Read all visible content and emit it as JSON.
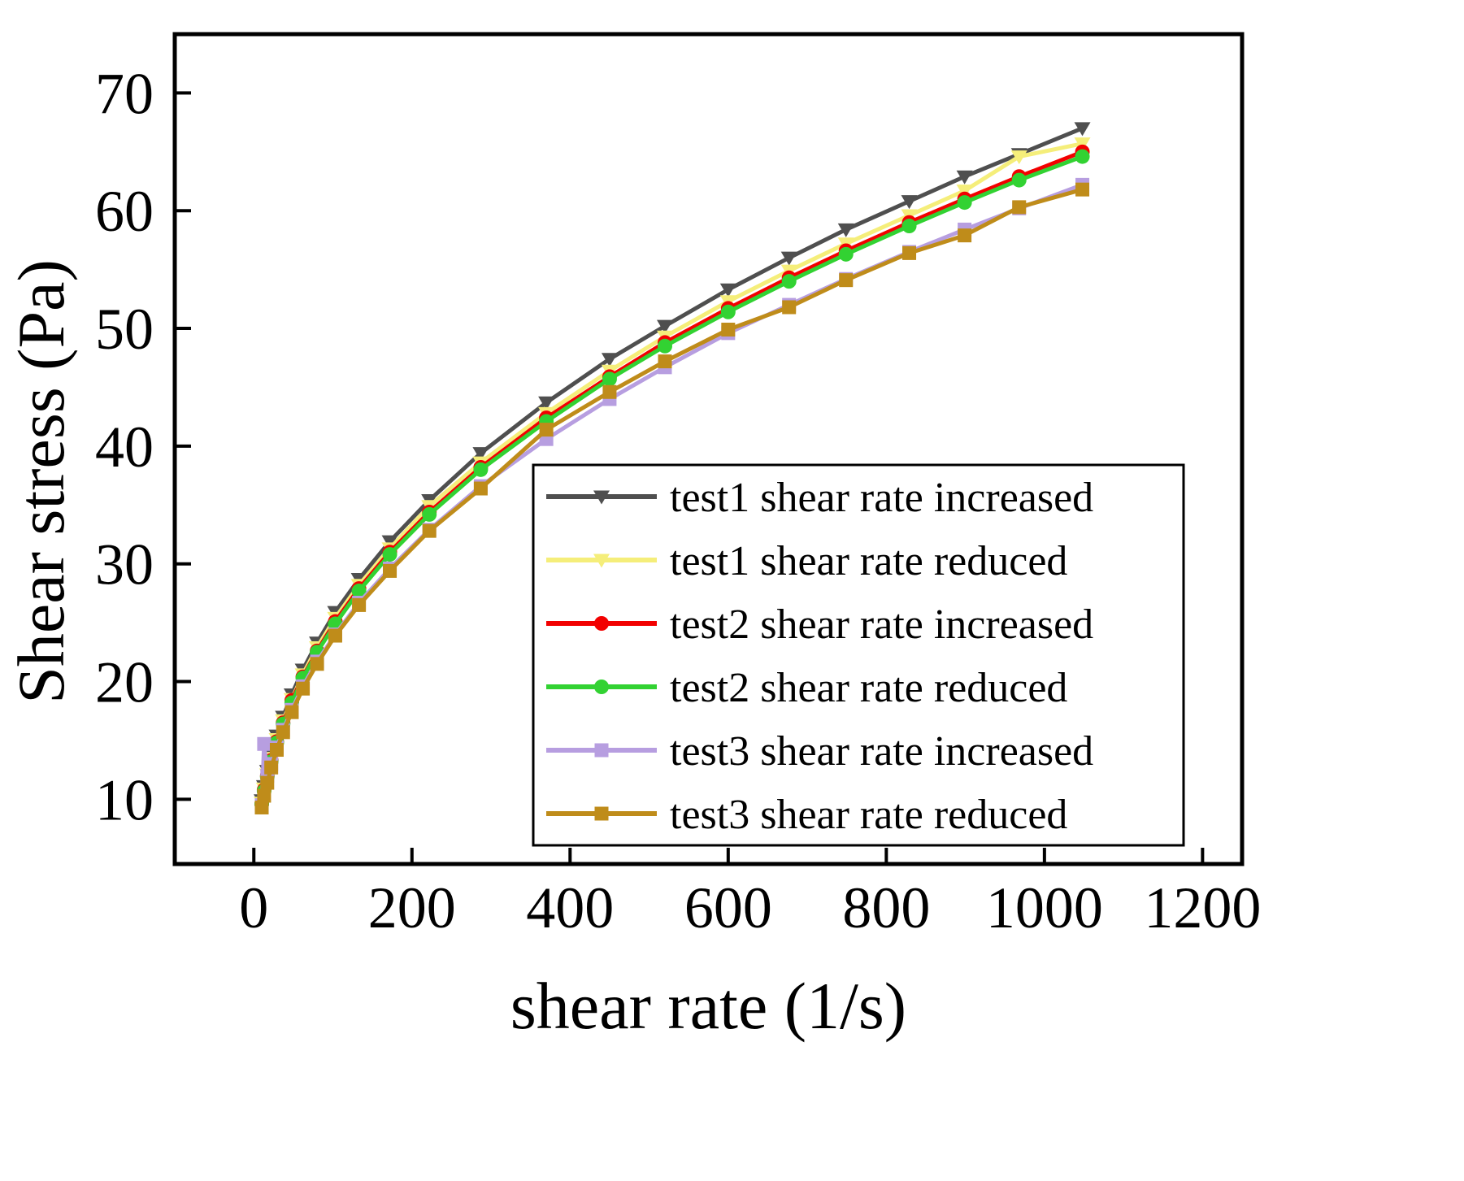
{
  "chart_data": {
    "type": "line",
    "title": "",
    "xlabel": "shear rate (1/s)",
    "ylabel": "Shear stress (Pa)",
    "xlim": [
      -100,
      1250
    ],
    "ylim": [
      4.5,
      75
    ],
    "x_ticks": [
      0,
      200,
      400,
      600,
      800,
      1000,
      1200
    ],
    "y_ticks": [
      10,
      20,
      30,
      40,
      50,
      60,
      70
    ],
    "grid": false,
    "legend_position": "inside-lower-right",
    "background_color": "#ffffff",
    "axis_color": "#000000",
    "x": [
      10,
      13,
      17,
      22,
      29,
      37,
      48,
      62,
      80,
      103,
      133,
      172,
      222,
      287,
      370,
      450,
      520,
      600,
      677,
      749,
      829,
      899,
      968,
      1048
    ],
    "series": [
      {
        "name": "test1 shear rate increased",
        "color": "#4f4f4f",
        "marker": "triangle-down",
        "values": [
          9.9,
          11.1,
          12.4,
          13.7,
          15.4,
          17.0,
          18.9,
          21.0,
          23.3,
          25.9,
          28.7,
          31.9,
          35.4,
          39.4,
          43.7,
          47.4,
          50.2,
          53.3,
          56.0,
          58.4,
          60.8,
          62.9,
          64.8,
          67.0
        ]
      },
      {
        "name": "test1 shear rate reduced",
        "color": "#f5ee7a",
        "marker": "triangle-down",
        "values": [
          9.7,
          10.9,
          12.1,
          13.5,
          15.1,
          16.7,
          18.5,
          20.6,
          22.9,
          25.4,
          28.2,
          31.3,
          34.9,
          38.6,
          42.8,
          46.4,
          49.3,
          52.3,
          54.9,
          57.2,
          59.6,
          61.7,
          64.6,
          65.7
        ]
      },
      {
        "name": "test2 shear rate increased",
        "color": "#f20000",
        "marker": "circle",
        "values": [
          9.6,
          10.8,
          12.0,
          13.3,
          14.9,
          16.5,
          18.4,
          20.4,
          22.6,
          25.1,
          27.9,
          31.0,
          34.4,
          38.2,
          42.4,
          45.9,
          48.8,
          51.7,
          54.3,
          56.6,
          59.0,
          61.0,
          62.9,
          65.0
        ]
      },
      {
        "name": "test2 shear rate reduced",
        "color": "#32d232",
        "marker": "circle",
        "values": [
          9.6,
          10.7,
          11.9,
          13.2,
          14.8,
          16.4,
          18.2,
          20.3,
          22.5,
          24.9,
          27.7,
          30.8,
          34.2,
          38.0,
          42.1,
          45.7,
          48.5,
          51.4,
          54.0,
          56.3,
          58.7,
          60.7,
          62.6,
          64.6
        ]
      },
      {
        "name": "test3 shear rate increased",
        "color": "#b79ee0",
        "marker": "square",
        "values": [
          9.5,
          14.7,
          12.0,
          13.0,
          14.4,
          15.9,
          17.6,
          19.6,
          21.7,
          24.0,
          26.7,
          29.6,
          32.9,
          36.6,
          40.6,
          44.0,
          46.7,
          49.6,
          52.0,
          54.2,
          56.5,
          58.4,
          60.2,
          62.2
        ]
      },
      {
        "name": "test3 shear rate reduced",
        "color": "#bf8c1a",
        "marker": "square",
        "values": [
          9.3,
          10.3,
          11.4,
          12.7,
          14.2,
          15.7,
          17.4,
          19.4,
          21.5,
          23.9,
          26.5,
          29.4,
          32.8,
          36.4,
          41.4,
          44.6,
          47.2,
          49.9,
          51.8,
          54.1,
          56.4,
          57.9,
          60.3,
          61.8
        ]
      }
    ]
  }
}
